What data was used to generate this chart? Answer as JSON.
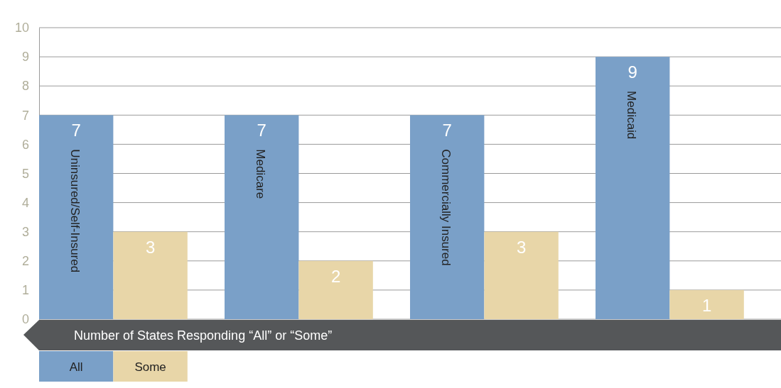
{
  "chart_data": {
    "type": "bar",
    "categories": [
      "Uninsured/Self-Insured",
      "Medicare",
      "Commercially Insured",
      "Medicaid"
    ],
    "series": [
      {
        "name": "All",
        "color": "#7aa0c8",
        "values": [
          7,
          7,
          7,
          9
        ]
      },
      {
        "name": "Some",
        "color": "#e8d6a8",
        "values": [
          3,
          2,
          3,
          1
        ]
      }
    ],
    "xlabel": "Number of States Responding “All” or “Some”",
    "ylim": [
      0,
      10
    ],
    "yticks": [
      0,
      1,
      2,
      3,
      4,
      5,
      6,
      7,
      8,
      9,
      10
    ],
    "grid": "y",
    "data_labels": true,
    "legend": "bottom left"
  }
}
